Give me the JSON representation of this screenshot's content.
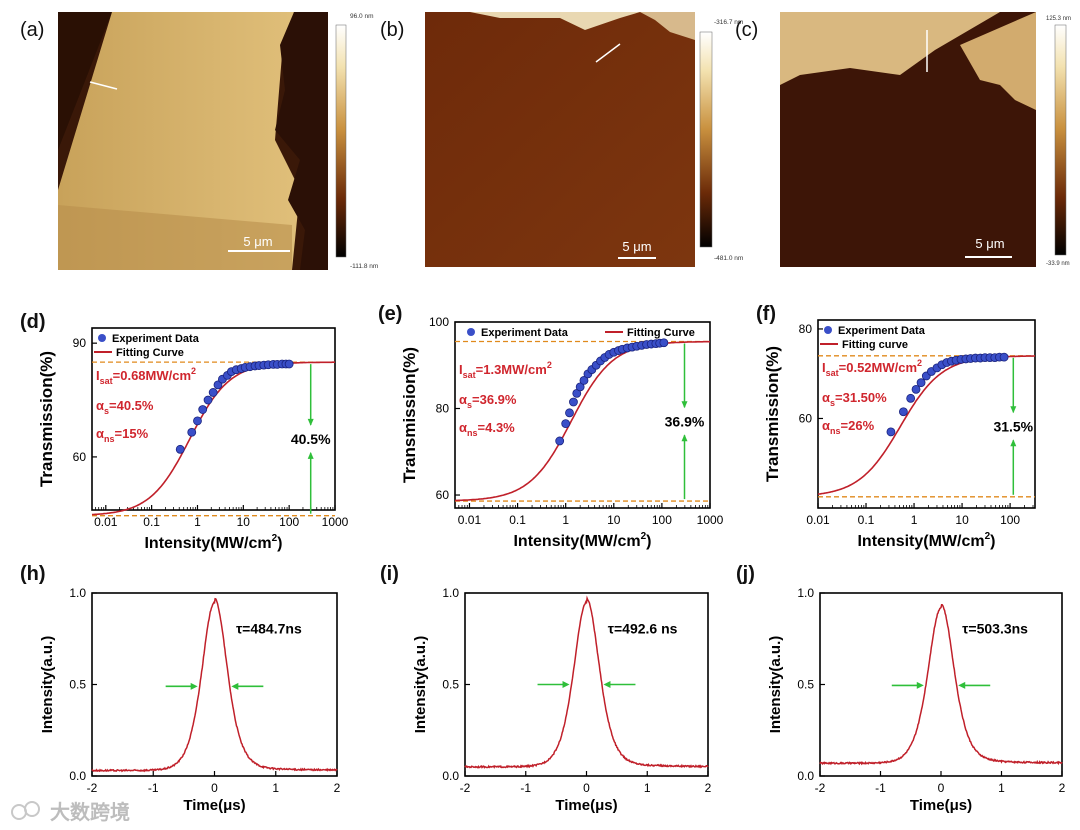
{
  "afm_panels": [
    {
      "label": "(a)",
      "scale_bar": "5 μm",
      "cb_max": "96.0 nm",
      "cb_min": "-111.8 nm"
    },
    {
      "label": "(b)",
      "scale_bar": "5 μm",
      "cb_max": "-316.7 nm",
      "cb_min": "-481.0 nm"
    },
    {
      "label": "(c)",
      "scale_bar": "5 μm",
      "cb_max": "125.3 nm",
      "cb_min": "-33.9 nm"
    }
  ],
  "watermark": {
    "text": "大数跨境"
  },
  "chart_data": [
    {
      "type": "scatter",
      "panel": "(d)",
      "xscale": "log",
      "xlabel": "Intensity(MW/cm²)",
      "ylabel": "Transmission(%)",
      "xlim": [
        0.005,
        1000
      ],
      "ylim": [
        46,
        94
      ],
      "xticks": [
        0.01,
        0.1,
        1,
        10,
        100,
        1000
      ],
      "xticklabels": [
        "0.01",
        "0.1",
        "1",
        "10",
        "100",
        "1000"
      ],
      "yticks": [
        60,
        90
      ],
      "yticklabels": [
        "60",
        "90"
      ],
      "legend": [
        "Experiment Data",
        "Fitting Curve"
      ],
      "legend_position": "top-left",
      "annotations": [
        "I",
        "sat",
        "=0.68MW/cm",
        "2",
        "α",
        "s",
        "=40.5%",
        "α",
        "ns",
        "=15%"
      ],
      "depth_label": "40.5%",
      "fit": {
        "Tmax": 85,
        "Tmin": 44.5,
        "Isat": 0.68
      },
      "series": [
        {
          "name": "Experiment Data",
          "x": [
            0.42,
            0.75,
            1.0,
            1.3,
            1.7,
            2.2,
            2.8,
            3.5,
            4.5,
            5.5,
            7,
            9,
            11,
            14,
            18,
            22,
            28,
            35,
            45,
            55,
            70,
            85,
            100
          ],
          "y": [
            62,
            66.5,
            69.5,
            72.5,
            75,
            77,
            79,
            80.5,
            81.5,
            82.5,
            83,
            83.3,
            83.6,
            83.8,
            84,
            84.1,
            84.2,
            84.3,
            84.4,
            84.4,
            84.5,
            84.5,
            84.5
          ]
        }
      ]
    },
    {
      "type": "scatter",
      "panel": "(e)",
      "xscale": "log",
      "xlabel": "Intensity(MW/cm²)",
      "ylabel": "Transmission(%)",
      "xlim": [
        0.005,
        1000
      ],
      "ylim": [
        57,
        100
      ],
      "xticks": [
        0.01,
        0.1,
        1,
        10,
        100,
        1000
      ],
      "xticklabels": [
        "0.01",
        "0.1",
        "1",
        "10",
        "100",
        "1000"
      ],
      "yticks": [
        60,
        80,
        100
      ],
      "yticklabels": [
        "60",
        "80",
        "100"
      ],
      "legend": [
        "Experiment Data",
        "Fitting Curve"
      ],
      "legend_position": "top",
      "annotations": [
        "I",
        "sat",
        "=1.3MW/cm",
        "2",
        "α",
        "s",
        "=36.9%",
        "α",
        "ns",
        "=4.3%"
      ],
      "depth_label": "36.9%",
      "fit": {
        "Tmax": 95.5,
        "Tmin": 58.6,
        "Isat": 1.3
      },
      "series": [
        {
          "name": "Experiment Data",
          "x": [
            0.75,
            1.0,
            1.2,
            1.45,
            1.7,
            2.0,
            2.4,
            2.9,
            3.5,
            4.3,
            5.3,
            6.5,
            8,
            10,
            12.5,
            15,
            19,
            24,
            30,
            38,
            48,
            60,
            75,
            90,
            110
          ],
          "y": [
            72.5,
            76.5,
            79,
            81.5,
            83.5,
            85,
            86.5,
            88,
            89,
            90,
            91,
            91.8,
            92.5,
            93,
            93.4,
            93.7,
            94,
            94.2,
            94.4,
            94.6,
            94.8,
            94.9,
            95,
            95.1,
            95.2
          ]
        }
      ]
    },
    {
      "type": "scatter",
      "panel": "(f)",
      "xscale": "log",
      "xlabel": "Intensity(MW/cm²)",
      "ylabel": "Transmission(%)",
      "xlim": [
        0.01,
        330
      ],
      "ylim": [
        40,
        82
      ],
      "xticks": [
        0.01,
        0.1,
        1,
        10,
        100
      ],
      "xticklabels": [
        "0.01",
        "0.1",
        "1",
        "10",
        "100"
      ],
      "yticks": [
        60,
        80
      ],
      "yticklabels": [
        "60",
        "80"
      ],
      "legend": [
        "Experiment Data",
        "Fitting curve"
      ],
      "legend_position": "top-left",
      "annotations": [
        "I",
        "sat",
        "=0.52MW/cm",
        "2",
        "α",
        "s",
        "=31.50%",
        "α",
        "ns",
        "=26%"
      ],
      "depth_label": "31.5%",
      "fit": {
        "Tmax": 74,
        "Tmin": 42.5,
        "Isat": 0.52
      },
      "series": [
        {
          "name": "Experiment Data",
          "x": [
            0.33,
            0.6,
            0.85,
            1.1,
            1.4,
            1.8,
            2.3,
            3.0,
            3.8,
            4.8,
            6,
            7.5,
            9.5,
            12,
            15,
            19,
            24,
            30,
            38,
            48,
            60,
            75
          ],
          "y": [
            57,
            61.5,
            64.5,
            66.5,
            68,
            69.5,
            70.5,
            71.3,
            72,
            72.5,
            72.8,
            73,
            73.2,
            73.3,
            73.4,
            73.5,
            73.5,
            73.6,
            73.6,
            73.6,
            73.7,
            73.7
          ]
        }
      ]
    },
    {
      "type": "line",
      "panel": "(h)",
      "xlabel": "Time(μs)",
      "ylabel": "Intensity(a.u.)",
      "xlim": [
        -2,
        2
      ],
      "ylim": [
        0,
        1.0
      ],
      "xticks": [
        -2,
        -1,
        0,
        1,
        2
      ],
      "xticklabels": [
        "-2",
        "-1",
        "0",
        "1",
        "2"
      ],
      "yticks": [
        0.0,
        0.5,
        1.0
      ],
      "yticklabels": [
        "0.0",
        "0.5",
        "1.0"
      ],
      "annotation_tau": "τ=484.7ns",
      "pulse": {
        "peak": 0.95,
        "base": 0.03,
        "fwhm": 0.4847
      },
      "series": [
        {
          "name": "",
          "x_range": [
            -2,
            2
          ]
        }
      ]
    },
    {
      "type": "line",
      "panel": "(i)",
      "xlabel": "Time(μs)",
      "ylabel": "Intensity(a.u.)",
      "xlim": [
        -2,
        2
      ],
      "ylim": [
        0,
        1.0
      ],
      "xticks": [
        -2,
        -1,
        0,
        1,
        2
      ],
      "xticklabels": [
        "-2",
        "-1",
        "0",
        "1",
        "2"
      ],
      "yticks": [
        0.0,
        0.5,
        1.0
      ],
      "yticklabels": [
        "0.0",
        "0.5",
        "1.0"
      ],
      "annotation_tau": "τ=492.6 ns",
      "pulse": {
        "peak": 0.95,
        "base": 0.05,
        "fwhm": 0.4926
      },
      "series": [
        {
          "name": "",
          "x_range": [
            -2,
            2
          ]
        }
      ]
    },
    {
      "type": "line",
      "panel": "(j)",
      "xlabel": "Time(μs)",
      "ylabel": "Intensity(a.u.)",
      "xlim": [
        -2,
        2
      ],
      "ylim": [
        0,
        1.0
      ],
      "xticks": [
        -2,
        -1,
        0,
        1,
        2
      ],
      "xticklabels": [
        "-2",
        "-1",
        "0",
        "1",
        "2"
      ],
      "yticks": [
        0.0,
        0.5,
        1.0
      ],
      "yticklabels": [
        "0.0",
        "0.5",
        "1.0"
      ],
      "annotation_tau": "τ=503.3ns",
      "pulse": {
        "peak": 0.92,
        "base": 0.07,
        "fwhm": 0.5033
      },
      "series": [
        {
          "name": "",
          "x_range": [
            -2,
            2
          ]
        }
      ]
    }
  ]
}
